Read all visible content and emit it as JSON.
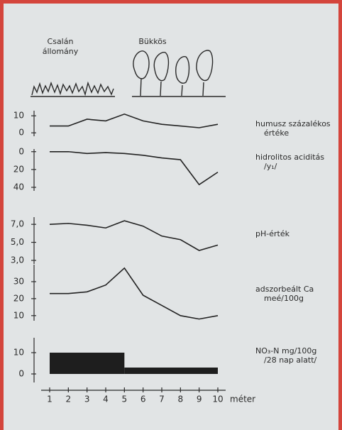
{
  "header": {
    "left_label_lines": [
      "Csalán",
      "állomány"
    ],
    "right_label": "Bükkös"
  },
  "chart_data": [
    {
      "type": "line",
      "title": [
        "humusz százalékos",
        "értéke"
      ],
      "x": [
        1,
        2,
        3,
        4,
        5,
        6,
        7,
        8,
        9,
        10
      ],
      "values": [
        4,
        4,
        8,
        7,
        11,
        7,
        5,
        4,
        3,
        5
      ],
      "ylim": [
        -2,
        13
      ],
      "yticks": [
        0,
        10
      ],
      "color": "#222222"
    },
    {
      "type": "line",
      "title": [
        "hidrolitos aciditás",
        "/y₁/"
      ],
      "x": [
        1,
        2,
        3,
        4,
        5,
        6,
        7,
        8,
        9,
        10
      ],
      "values": [
        0,
        0,
        2,
        1,
        2,
        4,
        7,
        9,
        37,
        23
      ],
      "ylim": [
        44,
        -3
      ],
      "yticks": [
        0,
        20,
        40
      ],
      "color": "#222222"
    },
    {
      "type": "line",
      "title": [
        "pH-érték"
      ],
      "x": [
        1,
        2,
        3,
        4,
        5,
        6,
        7,
        8,
        9,
        10
      ],
      "values": [
        7.0,
        7.1,
        6.9,
        6.6,
        7.4,
        6.8,
        5.7,
        5.3,
        4.1,
        4.7
      ],
      "ylim": [
        2.6,
        7.8
      ],
      "yticks": [
        {
          "value": 7,
          "label": "7,0"
        },
        {
          "value": 5,
          "label": "5,0"
        },
        {
          "value": 3,
          "label": "3,0"
        }
      ],
      "color": "#222222"
    },
    {
      "type": "line",
      "title": [
        "adszorbeált Ca",
        "meé/100g"
      ],
      "x": [
        1,
        2,
        3,
        4,
        5,
        6,
        7,
        8,
        9,
        10
      ],
      "values": [
        23,
        23,
        24,
        28,
        38,
        22,
        16,
        10,
        8,
        10
      ],
      "ylim": [
        7,
        40
      ],
      "yticks": [
        30,
        20,
        10
      ],
      "color": "#222222"
    },
    {
      "type": "histogram",
      "title": [
        "NO₃-N mg/100g",
        "/28 nap alatt/"
      ],
      "bins": [
        1,
        5,
        10
      ],
      "values": [
        10,
        3
      ],
      "ylim": [
        -4,
        17
      ],
      "yticks": [
        10,
        0
      ],
      "color": "#1e1e1e",
      "xlim": [
        1,
        10
      ],
      "xticks": [
        1,
        2,
        3,
        4,
        5,
        6,
        7,
        8,
        9,
        10
      ],
      "xlabel": "méter"
    }
  ]
}
